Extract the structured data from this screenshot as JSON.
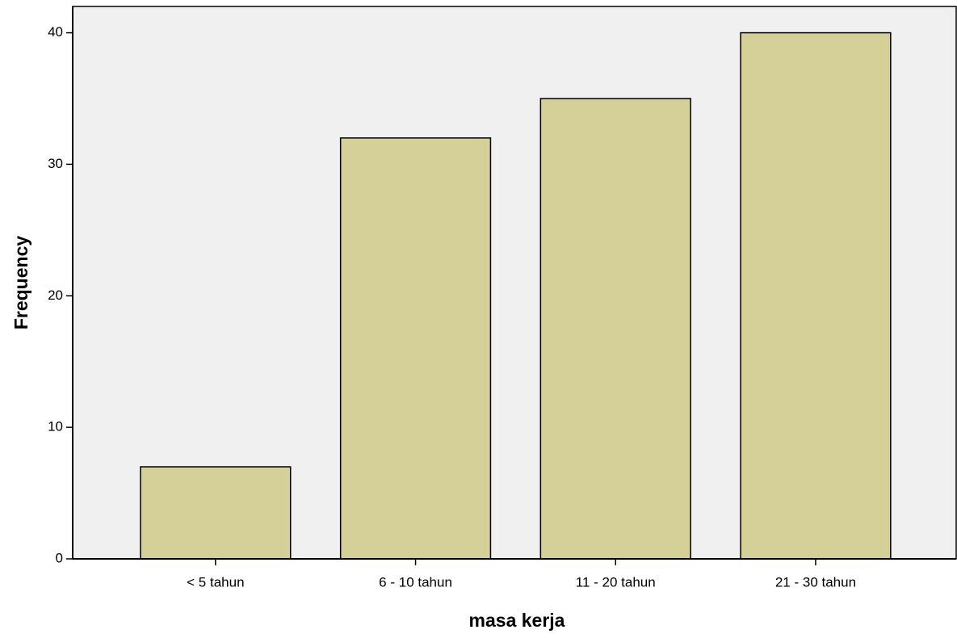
{
  "chart_data": {
    "type": "bar",
    "x_label": "masa kerja",
    "y_label": "Frequency",
    "categories": [
      "< 5 tahun",
      "6 - 10 tahun",
      "11 - 20 tahun",
      "21 - 30 tahun"
    ],
    "values": [
      7,
      32,
      35,
      40
    ],
    "color": "#d4d098",
    "ylim": [
      0,
      42
    ],
    "yticks": [
      0,
      10,
      20,
      30,
      40
    ],
    "grid": false
  }
}
